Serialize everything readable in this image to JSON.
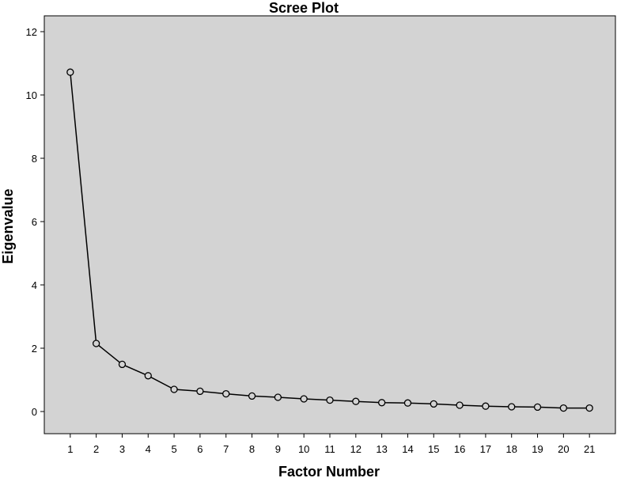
{
  "chart_data": {
    "type": "line",
    "title": "Scree Plot",
    "xlabel": "Factor Number",
    "ylabel": "Eigenvalue",
    "x": [
      1,
      2,
      3,
      4,
      5,
      6,
      7,
      8,
      9,
      10,
      11,
      12,
      13,
      14,
      15,
      16,
      17,
      18,
      19,
      20,
      21
    ],
    "x_tick_labels": [
      "1",
      "2",
      "3",
      "4",
      "5",
      "6",
      "7",
      "8",
      "9",
      "10",
      "11",
      "12",
      "13",
      "14",
      "15",
      "16",
      "17",
      "18",
      "19",
      "20",
      "21"
    ],
    "series": [
      {
        "values": [
          10.72,
          2.15,
          1.49,
          1.13,
          0.7,
          0.64,
          0.56,
          0.49,
          0.45,
          0.4,
          0.36,
          0.32,
          0.28,
          0.27,
          0.24,
          0.2,
          0.17,
          0.15,
          0.14,
          0.11,
          0.11
        ]
      }
    ],
    "xlim": [
      0,
      22
    ],
    "ylim": [
      -0.7,
      12.5
    ],
    "y_ticks": [
      0,
      2,
      4,
      6,
      8,
      10,
      12
    ],
    "y_tick_labels": [
      "0",
      "2",
      "4",
      "6",
      "8",
      "10",
      "12"
    ],
    "grid": false,
    "marker": "open-circle",
    "colors": {
      "plot_background": "#d3d3d3",
      "line": "#000000",
      "marker_stroke": "#000000",
      "marker_fill": "none",
      "axis": "#000000"
    }
  }
}
